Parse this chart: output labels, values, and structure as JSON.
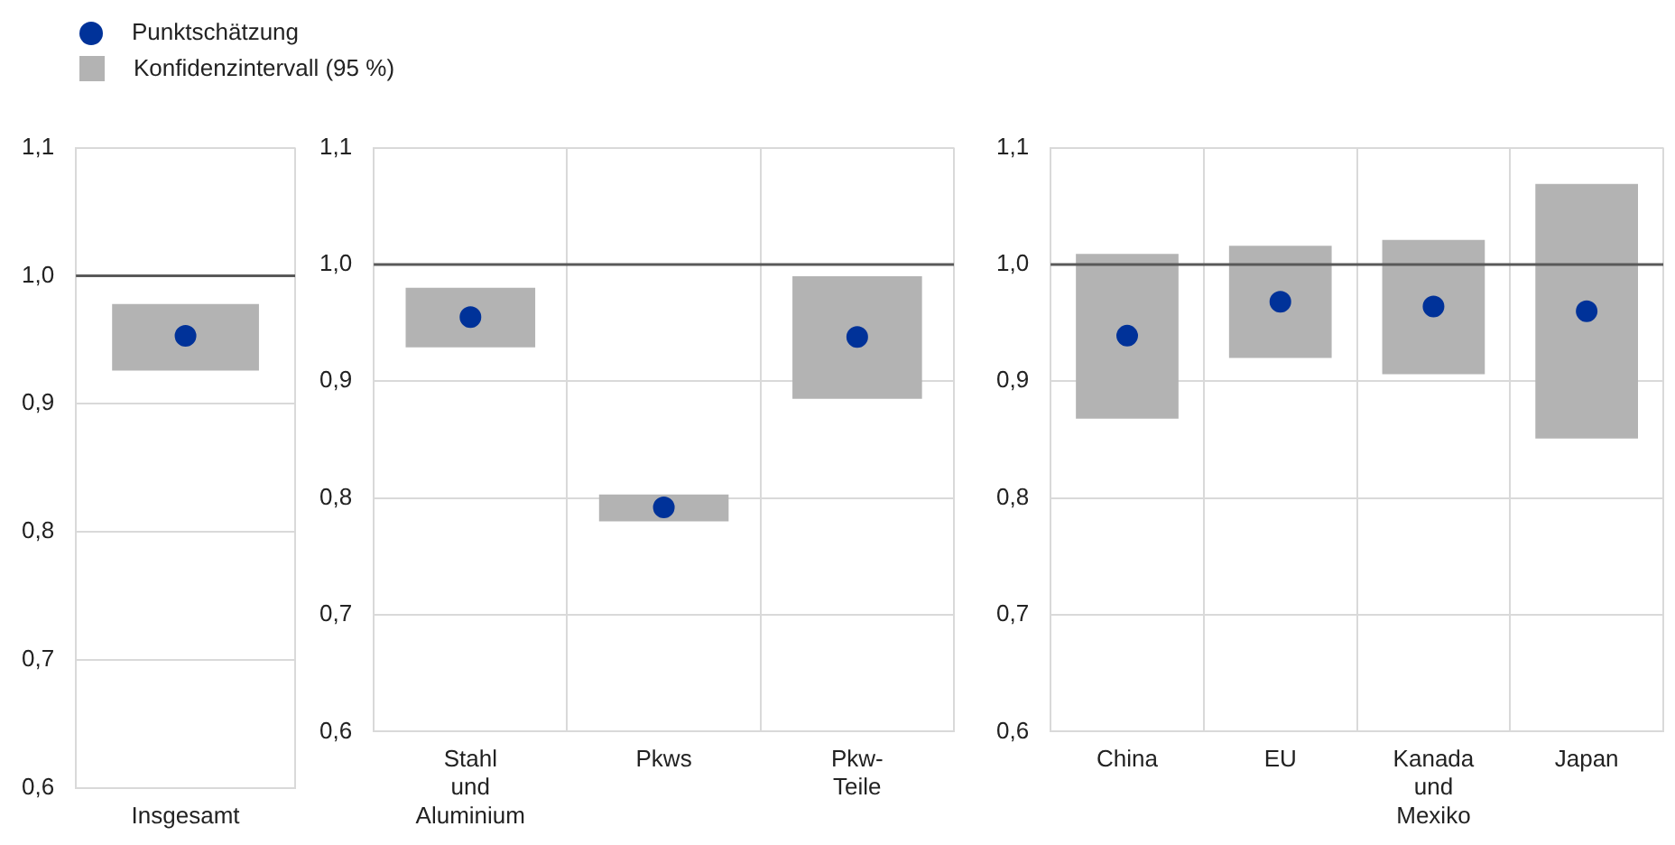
{
  "chart_data": [
    {
      "type": "bar",
      "categories": [
        "Insgesamt"
      ],
      "legend": "top",
      "grid": true,
      "ylim": [
        0.6,
        1.1
      ],
      "yticks": [
        {
          "value": 0.6,
          "label": "0,6"
        },
        {
          "value": 0.7,
          "label": "0,7"
        },
        {
          "value": 0.8,
          "label": "0,8"
        },
        {
          "value": 0.9,
          "label": "0,9"
        },
        {
          "value": 1.0,
          "label": "1,0"
        },
        {
          "value": 1.1,
          "label": "1,1"
        }
      ],
      "ref_lines": [
        {
          "axis": "y",
          "value": 1.0,
          "color": "#595959"
        }
      ],
      "series": [
        {
          "name": "Punktschätzung",
          "type": "scatter",
          "marker": "circle",
          "color": "#003299",
          "x": [
            "Insgesamt"
          ],
          "values": [
            0.953
          ]
        },
        {
          "name": "Konfidenzintervall (95 %)",
          "color": "#b3b3b3",
          "base": [
            0.926
          ],
          "values": [
            0.052
          ]
        }
      ]
    },
    {
      "type": "bar",
      "categories": [
        "Stahl und Aluminium",
        "Pkws",
        "Pkw-Teile"
      ],
      "grid": true,
      "ylim": [
        0.6,
        1.1
      ],
      "yticks": [
        {
          "value": 0.6,
          "label": "0,6"
        },
        {
          "value": 0.7,
          "label": "0,7"
        },
        {
          "value": 0.8,
          "label": "0,8"
        },
        {
          "value": 0.9,
          "label": "0,9"
        },
        {
          "value": 1.0,
          "label": "1,0"
        },
        {
          "value": 1.1,
          "label": "1,1"
        }
      ],
      "ref_lines": [
        {
          "axis": "y",
          "value": 1.0,
          "color": "#595959"
        }
      ],
      "series": [
        {
          "type": "scatter",
          "marker": "circle",
          "color": "#003299",
          "x": [
            "Stahl und Aluminium",
            "Pkws",
            "Pkw-Teile"
          ],
          "values": [
            0.955,
            0.792,
            0.938
          ]
        },
        {
          "color": "#b3b3b3",
          "base": [
            0.929,
            0.78,
            0.885
          ],
          "values": [
            0.051,
            0.023,
            0.105
          ]
        }
      ]
    },
    {
      "type": "bar",
      "categories": [
        "China",
        "EU",
        "Kanada und Mexiko",
        "Japan"
      ],
      "grid": true,
      "ylim": [
        0.6,
        1.1
      ],
      "yticks": [
        {
          "value": 0.6,
          "label": "0,6"
        },
        {
          "value": 0.7,
          "label": "0,7"
        },
        {
          "value": 0.8,
          "label": "0,8"
        },
        {
          "value": 0.9,
          "label": "0,9"
        },
        {
          "value": 1.0,
          "label": "1,0"
        },
        {
          "value": 1.1,
          "label": "1,1"
        }
      ],
      "ref_lines": [
        {
          "axis": "y",
          "value": 1.0,
          "color": "#595959"
        }
      ],
      "series": [
        {
          "type": "scatter",
          "marker": "circle",
          "color": "#003299",
          "x": [
            "China",
            "EU",
            "Kanada und Mexiko",
            "Japan"
          ],
          "values": [
            0.939,
            0.968,
            0.964,
            0.96
          ]
        },
        {
          "color": "#b3b3b3",
          "base": [
            0.868,
            0.92,
            0.906,
            0.851
          ],
          "values": [
            0.141,
            0.096,
            0.115,
            0.218
          ]
        }
      ]
    }
  ]
}
